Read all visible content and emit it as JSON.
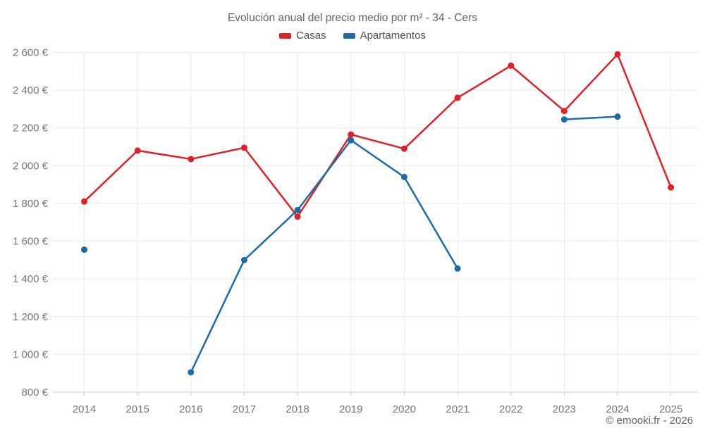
{
  "chart": {
    "title": "Evolución anual del precio medio por m² - 34 - Cers",
    "footer": "© emooki.fr - 2026",
    "legend": [
      {
        "label": "Casas",
        "color": "#e02128"
      },
      {
        "label": "Apartamentos",
        "color": "#1b6ca8"
      }
    ]
  },
  "chart_data": {
    "type": "line",
    "title": "Evolución anual del precio medio por m² - 34 - Cers",
    "xlabel": "",
    "ylabel": "",
    "categories": [
      "2014",
      "2015",
      "2016",
      "2017",
      "2018",
      "2019",
      "2020",
      "2021",
      "2022",
      "2023",
      "2024",
      "2025"
    ],
    "series": [
      {
        "name": "Casas",
        "color": "#e02128",
        "values": [
          1810,
          2080,
          2035,
          2095,
          1730,
          2165,
          2090,
          2360,
          2530,
          2290,
          2590,
          1885
        ]
      },
      {
        "name": "Apartamentos",
        "color": "#1b6ca8",
        "values": [
          1555,
          null,
          905,
          1500,
          1765,
          2135,
          1940,
          1455,
          null,
          2245,
          2260,
          null
        ]
      }
    ],
    "ylim": [
      800,
      2600
    ],
    "ytick_step": 200,
    "ytick_labels": [
      "800 €",
      "1 000 €",
      "1 200 €",
      "1 400 €",
      "1 600 €",
      "1 800 €",
      "2 000 €",
      "2 200 €",
      "2 400 €",
      "2 600 €"
    ],
    "currency": "€",
    "grid": true,
    "legend_position": "top",
    "footer": "© emooki.fr - 2026"
  }
}
